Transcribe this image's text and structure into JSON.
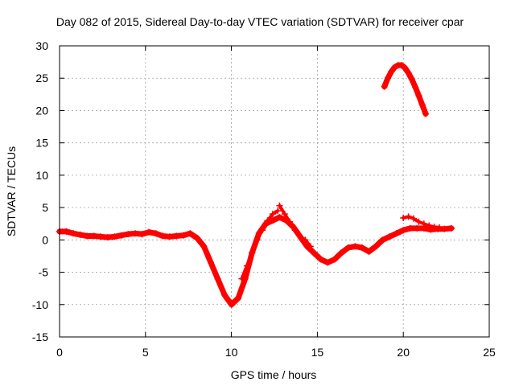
{
  "chart_data": {
    "type": "scatter",
    "title": "Day 082 of 2015, Sidereal Day-to-day VTEC variation (SDTVAR) for receiver cpar",
    "xlabel": "GPS time / hours",
    "ylabel": "SDTVAR / TECUs",
    "xlim": [
      0,
      25
    ],
    "ylim": [
      -15,
      30
    ],
    "xticks": [
      0,
      5,
      10,
      15,
      20,
      25
    ],
    "yticks": [
      -15,
      -10,
      -5,
      0,
      5,
      10,
      15,
      20,
      25,
      30
    ],
    "xtick_labels": [
      "0",
      "5",
      "10",
      "15",
      "20",
      "25"
    ],
    "ytick_labels": [
      "-15",
      "-10",
      "-5",
      "0",
      "5",
      "10",
      "15",
      "20",
      "25",
      "30"
    ],
    "grid": true,
    "marker": "+",
    "color": "#ff0000",
    "series": [
      {
        "name": "main-trace",
        "x": [
          0,
          0.4,
          0.8,
          1.2,
          1.6,
          2.0,
          2.4,
          2.8,
          3.2,
          3.6,
          4.0,
          4.4,
          4.8,
          5.2,
          5.6,
          6.0,
          6.4,
          6.8,
          7.2,
          7.6,
          8.0,
          8.4,
          8.8,
          9.2,
          9.6,
          10.0,
          10.4,
          10.8,
          11.2,
          11.6,
          12.0,
          12.4,
          12.8,
          13.2,
          13.6,
          14.0,
          14.4,
          14.8,
          15.2,
          15.6,
          16.0,
          16.4,
          16.8,
          17.2,
          17.6,
          18.0,
          18.4,
          18.8,
          19.2,
          19.6,
          20.0,
          20.4,
          20.8,
          21.2,
          21.6,
          22.0,
          22.4,
          22.8
        ],
        "y": [
          1.3,
          1.3,
          1.0,
          0.8,
          0.6,
          0.6,
          0.5,
          0.4,
          0.5,
          0.7,
          0.9,
          1.0,
          0.9,
          1.2,
          1.0,
          0.6,
          0.5,
          0.6,
          0.7,
          1.0,
          0.3,
          -1.0,
          -3.5,
          -6.0,
          -8.5,
          -10.0,
          -9.0,
          -6.0,
          -2.0,
          1.0,
          2.5,
          3.0,
          3.5,
          3.0,
          2.0,
          0.5,
          -1.0,
          -2.0,
          -3.0,
          -3.5,
          -3.0,
          -2.0,
          -1.2,
          -1.0,
          -1.2,
          -1.8,
          -1.0,
          0.0,
          0.5,
          1.0,
          1.5,
          1.8,
          1.8,
          1.8,
          1.6,
          1.7,
          1.7,
          1.8
        ]
      },
      {
        "name": "upper-trace",
        "x": [
          18.9,
          19.1,
          19.3,
          19.5,
          19.7,
          19.9,
          20.1,
          20.3,
          20.5,
          20.7,
          20.9,
          21.1,
          21.3
        ],
        "y": [
          23.7,
          25.0,
          26.0,
          26.7,
          27.0,
          27.0,
          26.6,
          25.8,
          24.8,
          23.6,
          22.3,
          20.9,
          19.5
        ]
      },
      {
        "name": "secondary-branch-a",
        "x": [
          10.6,
          10.9,
          11.2,
          11.5,
          11.8,
          12.1,
          12.4,
          12.7
        ],
        "y": [
          -6.0,
          -4.0,
          -2.0,
          0.0,
          1.5,
          3.0,
          4.0,
          4.5
        ]
      },
      {
        "name": "secondary-branch-b",
        "x": [
          12.8,
          13.1,
          13.4,
          13.7,
          14.0,
          14.3,
          14.6
        ],
        "y": [
          5.3,
          4.0,
          2.8,
          1.5,
          0.5,
          0.0,
          -1.0
        ]
      },
      {
        "name": "secondary-branch-c",
        "x": [
          20.0,
          20.3,
          20.6,
          20.9,
          21.2,
          21.5,
          21.8,
          22.1
        ],
        "y": [
          3.4,
          3.6,
          3.3,
          2.8,
          2.5,
          2.2,
          2.0,
          1.9
        ]
      }
    ]
  }
}
